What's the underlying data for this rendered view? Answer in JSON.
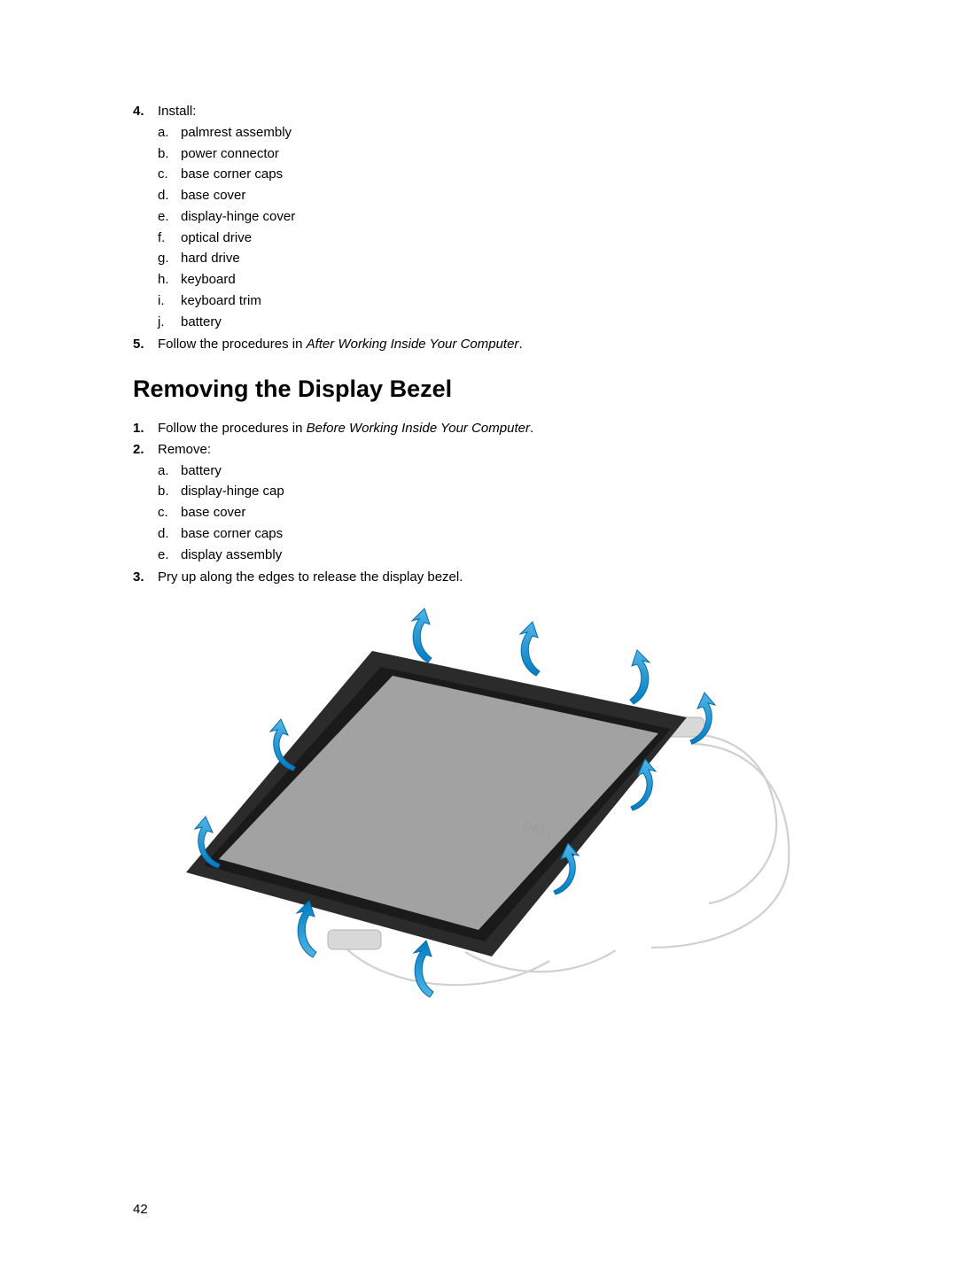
{
  "step4": {
    "number": "4.",
    "label": "Install:",
    "items": [
      {
        "letter": "a.",
        "text": "palmrest assembly"
      },
      {
        "letter": "b.",
        "text": "power connector"
      },
      {
        "letter": "c.",
        "text": "base corner caps"
      },
      {
        "letter": "d.",
        "text": "base cover"
      },
      {
        "letter": "e.",
        "text": "display-hinge cover"
      },
      {
        "letter": "f.",
        "text": "optical drive"
      },
      {
        "letter": "g.",
        "text": "hard drive"
      },
      {
        "letter": "h.",
        "text": "keyboard"
      },
      {
        "letter": "i.",
        "text": "keyboard trim"
      },
      {
        "letter": "j.",
        "text": "battery"
      }
    ]
  },
  "step5": {
    "number": "5.",
    "prefix": "Follow the procedures in ",
    "italic": "After Working Inside Your Computer",
    "suffix": "."
  },
  "heading": "Removing the Display Bezel",
  "removeStep1": {
    "number": "1.",
    "prefix": "Follow the procedures in ",
    "italic": "Before Working Inside Your Computer",
    "suffix": "."
  },
  "removeStep2": {
    "number": "2.",
    "label": "Remove:",
    "items": [
      {
        "letter": "a.",
        "text": "battery"
      },
      {
        "letter": "b.",
        "text": "display-hinge cap"
      },
      {
        "letter": "c.",
        "text": "base cover"
      },
      {
        "letter": "d.",
        "text": "base corner caps"
      },
      {
        "letter": "e.",
        "text": "display assembly"
      }
    ]
  },
  "removeStep3": {
    "number": "3.",
    "text": "Pry up along the edges to release the display bezel."
  },
  "pageNumber": "42",
  "diagram": {
    "type": "infographic",
    "background_color": "#ffffff",
    "screen_fill": "#a2a2a2",
    "bezel_outer": "#2b2b2b",
    "bezel_inner": "#1a1a1a",
    "hinge_color": "#d8d8d8",
    "cable_color": "#d0d0d0",
    "arrow_color": "#007dc3",
    "arrow_highlight": "#4fb5e6",
    "logo_text": "DELL",
    "logo_color": "#9a9a9a"
  }
}
